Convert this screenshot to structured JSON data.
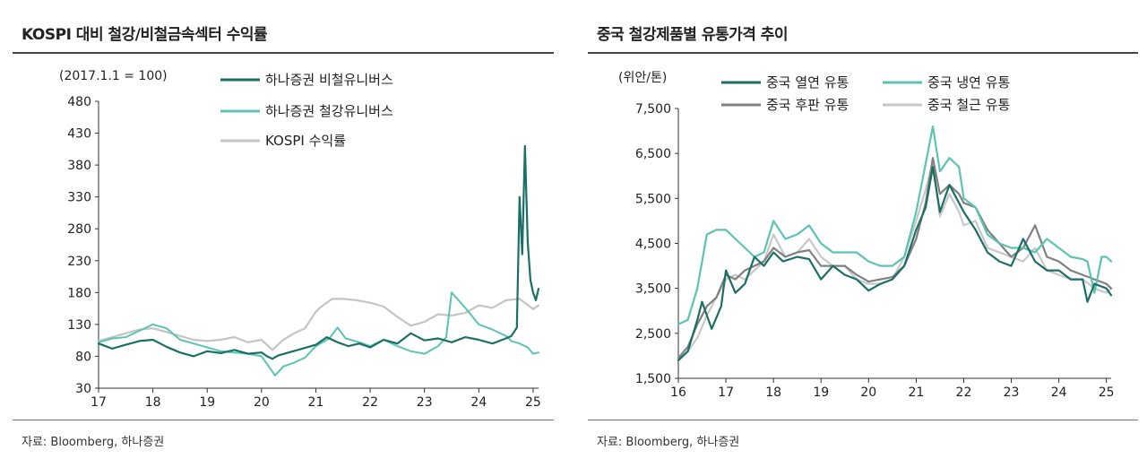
{
  "left": {
    "title": "KOSPI 대비 철강/비철금속섹터 수익률",
    "source": "자료: Bloomberg, 하나증권",
    "chart_data": {
      "type": "line",
      "unit_label": "(2017.1.1 = 100)",
      "xlim": [
        17,
        25.1
      ],
      "ylim": [
        30,
        480
      ],
      "x_ticks": [
        "17",
        "18",
        "19",
        "20",
        "21",
        "22",
        "23",
        "24",
        "25"
      ],
      "y_ticks": [
        30,
        80,
        130,
        180,
        230,
        280,
        330,
        380,
        430,
        480
      ],
      "legend_position": "top-center",
      "series": [
        {
          "name": "하나증권 비철유니버스",
          "color": "#1b6f66",
          "width": 2.2,
          "x": [
            17,
            17.25,
            17.5,
            17.75,
            18,
            18.25,
            18.5,
            18.75,
            19,
            19.25,
            19.5,
            19.75,
            20,
            20.1,
            20.2,
            20.3,
            20.5,
            20.75,
            21,
            21.2,
            21.4,
            21.6,
            21.8,
            22,
            22.25,
            22.5,
            22.75,
            23,
            23.25,
            23.5,
            23.75,
            24,
            24.25,
            24.5,
            24.6,
            24.7,
            24.75,
            24.8,
            24.85,
            24.9,
            24.95,
            25,
            25.05,
            25.1
          ],
          "y": [
            100,
            92,
            98,
            104,
            106,
            95,
            86,
            80,
            88,
            85,
            90,
            84,
            86,
            80,
            76,
            81,
            86,
            92,
            98,
            110,
            102,
            96,
            100,
            94,
            106,
            100,
            116,
            105,
            108,
            102,
            110,
            106,
            100,
            108,
            112,
            125,
            330,
            240,
            410,
            260,
            200,
            180,
            168,
            186
          ]
        },
        {
          "name": "하나증권 철강유니버스",
          "color": "#5cc3b3",
          "width": 2,
          "x": [
            17,
            17.25,
            17.5,
            17.75,
            18,
            18.25,
            18.5,
            18.75,
            19,
            19.25,
            19.5,
            19.75,
            20,
            20.15,
            20.25,
            20.4,
            20.6,
            20.8,
            21,
            21.25,
            21.4,
            21.55,
            21.8,
            22,
            22.25,
            22.5,
            22.75,
            23,
            23.25,
            23.4,
            23.5,
            23.75,
            24,
            24.25,
            24.5,
            24.6,
            24.75,
            24.9,
            25,
            25.1
          ],
          "y": [
            102,
            108,
            110,
            120,
            130,
            124,
            106,
            100,
            94,
            88,
            86,
            84,
            80,
            62,
            50,
            64,
            70,
            78,
            96,
            108,
            125,
            108,
            102,
            96,
            106,
            96,
            88,
            84,
            96,
            110,
            180,
            156,
            130,
            122,
            112,
            104,
            100,
            94,
            84,
            86
          ]
        },
        {
          "name": "KOSPI 수익률",
          "color": "#c4c4c4",
          "width": 2.2,
          "x": [
            17,
            17.25,
            17.5,
            17.75,
            18,
            18.25,
            18.5,
            18.75,
            19,
            19.25,
            19.5,
            19.75,
            20,
            20.2,
            20.4,
            20.6,
            20.8,
            21,
            21.1,
            21.3,
            21.5,
            21.75,
            22,
            22.25,
            22.5,
            22.75,
            23,
            23.25,
            23.5,
            23.75,
            24,
            24.25,
            24.5,
            24.75,
            25,
            25.1
          ],
          "y": [
            104,
            110,
            116,
            122,
            124,
            118,
            112,
            106,
            104,
            106,
            110,
            102,
            106,
            90,
            106,
            116,
            124,
            150,
            158,
            170,
            170,
            168,
            164,
            158,
            142,
            128,
            134,
            146,
            144,
            148,
            160,
            156,
            168,
            170,
            154,
            160
          ]
        }
      ]
    }
  },
  "right": {
    "title": "중국 철강제품별 유통가격 추이",
    "source": "자료: Bloomberg, 하나증권",
    "chart_data": {
      "type": "line",
      "unit_label": "(위안/톤)",
      "xlim": [
        16,
        25.1
      ],
      "ylim": [
        1500,
        7500
      ],
      "x_ticks": [
        "16",
        "17",
        "18",
        "19",
        "20",
        "21",
        "22",
        "23",
        "24",
        "25"
      ],
      "y_ticks": [
        "1,500",
        "2,500",
        "3,500",
        "4,500",
        "5,500",
        "6,500",
        "7,500"
      ],
      "y_tick_values": [
        1500,
        2500,
        3500,
        4500,
        5500,
        6500,
        7500
      ],
      "legend_position": "top",
      "series": [
        {
          "name": "중국 열연 유통",
          "color": "#1b6f66",
          "width": 2.2,
          "x": [
            16,
            16.2,
            16.4,
            16.5,
            16.7,
            16.9,
            17,
            17.2,
            17.4,
            17.6,
            17.8,
            18,
            18.2,
            18.5,
            18.75,
            19,
            19.25,
            19.5,
            19.75,
            20,
            20.25,
            20.5,
            20.75,
            21,
            21.2,
            21.35,
            21.5,
            21.7,
            21.9,
            22,
            22.25,
            22.5,
            22.75,
            23,
            23.25,
            23.5,
            23.75,
            24,
            24.25,
            24.5,
            24.6,
            24.75,
            25,
            25.1
          ],
          "y": [
            1900,
            2100,
            2800,
            3200,
            2600,
            3100,
            3900,
            3400,
            3600,
            4200,
            4000,
            4300,
            4100,
            4200,
            4150,
            3700,
            4000,
            3800,
            3700,
            3450,
            3600,
            3700,
            4000,
            4800,
            5300,
            6200,
            5200,
            5800,
            5400,
            5200,
            4800,
            4300,
            4100,
            4000,
            4600,
            4100,
            3900,
            3900,
            3700,
            3700,
            3200,
            3600,
            3500,
            3350
          ]
        },
        {
          "name": "중국 냉연 유통",
          "color": "#5cc3b3",
          "width": 2.2,
          "x": [
            16,
            16.2,
            16.4,
            16.6,
            16.8,
            17,
            17.2,
            17.4,
            17.6,
            17.8,
            18,
            18.25,
            18.5,
            18.75,
            19,
            19.25,
            19.5,
            19.75,
            20,
            20.25,
            20.5,
            20.75,
            21,
            21.15,
            21.35,
            21.5,
            21.7,
            21.9,
            22,
            22.25,
            22.5,
            22.75,
            23,
            23.25,
            23.5,
            23.75,
            24,
            24.25,
            24.5,
            24.6,
            24.75,
            24.9,
            25,
            25.1
          ],
          "y": [
            2700,
            2800,
            3500,
            4700,
            4800,
            4800,
            4600,
            4400,
            4200,
            4300,
            5000,
            4600,
            4700,
            4900,
            4500,
            4300,
            4300,
            4300,
            4100,
            4000,
            4000,
            4200,
            5200,
            6000,
            7100,
            6100,
            6400,
            6200,
            5500,
            5300,
            4700,
            4500,
            4400,
            4400,
            4300,
            4600,
            4400,
            4200,
            4150,
            4100,
            3400,
            4200,
            4200,
            4100
          ]
        },
        {
          "name": "중국 후판 유통",
          "color": "#808080",
          "width": 2.2,
          "x": [
            16,
            16.2,
            16.4,
            16.6,
            16.8,
            17,
            17.2,
            17.4,
            17.6,
            17.8,
            18,
            18.25,
            18.5,
            18.75,
            19,
            19.25,
            19.5,
            19.75,
            20,
            20.25,
            20.5,
            20.75,
            21,
            21.2,
            21.35,
            21.5,
            21.7,
            21.9,
            22,
            22.25,
            22.5,
            22.75,
            23,
            23.25,
            23.5,
            23.75,
            24,
            24.25,
            24.5,
            24.75,
            25,
            25.1
          ],
          "y": [
            1950,
            2200,
            2700,
            3100,
            3300,
            3800,
            3700,
            3900,
            4000,
            4100,
            4400,
            4200,
            4300,
            4350,
            4000,
            4000,
            4000,
            3800,
            3650,
            3700,
            3750,
            4000,
            4600,
            5400,
            6400,
            5600,
            5800,
            5600,
            5400,
            5300,
            4800,
            4500,
            4200,
            4400,
            4900,
            4200,
            4100,
            3900,
            3800,
            3700,
            3600,
            3500
          ]
        },
        {
          "name": "중국 철근 유통",
          "color": "#c8c8c8",
          "width": 2.2,
          "x": [
            16,
            16.2,
            16.4,
            16.6,
            16.8,
            17,
            17.2,
            17.4,
            17.6,
            17.8,
            18,
            18.25,
            18.5,
            18.75,
            19,
            19.25,
            19.5,
            19.75,
            20,
            20.25,
            20.5,
            20.75,
            21,
            21.2,
            21.35,
            21.5,
            21.7,
            21.9,
            22,
            22.25,
            22.5,
            22.75,
            23,
            23.25,
            23.5,
            23.75,
            24,
            24.25,
            24.5,
            24.75,
            25,
            25.1
          ],
          "y": [
            1900,
            2100,
            2400,
            2900,
            3300,
            3700,
            3800,
            3700,
            3900,
            4100,
            4700,
            4200,
            4300,
            4600,
            4200,
            4000,
            4000,
            3700,
            3600,
            3600,
            3700,
            4200,
            5000,
            5700,
            6300,
            5100,
            5600,
            5200,
            4900,
            5000,
            4400,
            4300,
            4200,
            4100,
            4400,
            3900,
            3800,
            3700,
            3700,
            3500,
            3400,
            3500
          ]
        }
      ]
    }
  }
}
